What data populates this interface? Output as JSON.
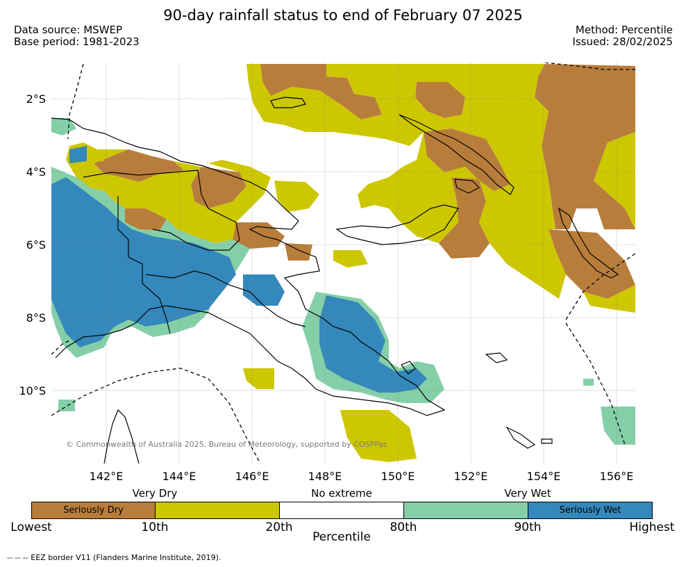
{
  "title": "90-day rainfall status to end of February 07 2025",
  "data_source": "Data source: MSWEP",
  "base_period": "Base period: 1981-2023",
  "method": "Method: Percentile",
  "issued": "Issued: 28/02/2025",
  "copyright": "© Commonwealth of Australia 2025, Bureau of Meteorology, supported by COSPPac",
  "footnote": "--  --  -- EEZ border V11 (Flanders Marine Institute, 2019).",
  "lat_labels": [
    "2°S",
    "4°S",
    "6°S",
    "8°S",
    "10°S"
  ],
  "lon_labels": [
    "142°E",
    "144°E",
    "146°E",
    "148°E",
    "150°E",
    "152°E",
    "154°E",
    "156°E"
  ],
  "colorbar": {
    "title": "Percentile",
    "categories": [
      {
        "label": "Very Dry"
      },
      {
        "label": "No extreme"
      },
      {
        "label": "Very Wet"
      }
    ],
    "segments": [
      {
        "label": "Seriously Dry",
        "color": "#b87d3b"
      },
      {
        "label": "",
        "color": "#cdc700"
      },
      {
        "label": "",
        "color": "#ffffff"
      },
      {
        "label": "",
        "color": "#85cfa8"
      },
      {
        "label": "Seriously Wet",
        "color": "#3488bb"
      }
    ],
    "ticks": [
      "Lowest",
      "10th",
      "20th",
      "80th",
      "90th",
      "Highest"
    ]
  },
  "colors": {
    "seriously_dry": "#b87d3b",
    "very_dry": "#cdc700",
    "no_extreme": "#ffffff",
    "very_wet": "#85cfa8",
    "seriously_wet": "#3488bb"
  }
}
